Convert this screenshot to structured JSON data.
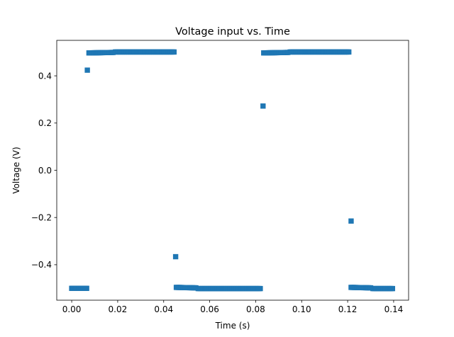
{
  "chart_data": {
    "type": "scatter",
    "title": "Voltage input vs. Time",
    "xlabel": "Time (s)",
    "ylabel": "Voltage (V)",
    "xlim": [
      -0.0065,
      0.1465
    ],
    "ylim": [
      -0.5502,
      0.5502
    ],
    "xticks": [
      0.0,
      0.02,
      0.04,
      0.06,
      0.08,
      0.1,
      0.12,
      0.14
    ],
    "xtick_labels": [
      "0.00",
      "0.02",
      "0.04",
      "0.06",
      "0.08",
      "0.10",
      "0.12",
      "0.14"
    ],
    "yticks": [
      -0.4,
      -0.2,
      0.0,
      0.2,
      0.4
    ],
    "ytick_labels": [
      "−0.4",
      "−0.2",
      "0.0",
      "0.2",
      "0.4"
    ],
    "marker": "square",
    "color": "#1f77b4",
    "grid": false,
    "segments": [
      {
        "x_start": 0.0,
        "x_end": 0.0065,
        "y_start": -0.5,
        "y_end": -0.5
      },
      {
        "x_start": 0.0075,
        "x_end": 0.018,
        "y_start": 0.497,
        "y_end": 0.499
      },
      {
        "x_start": 0.019,
        "x_end": 0.0445,
        "y_start": 0.501,
        "y_end": 0.501
      },
      {
        "x_start": 0.0455,
        "x_end": 0.054,
        "y_start": -0.496,
        "y_end": -0.498
      },
      {
        "x_start": 0.055,
        "x_end": 0.082,
        "y_start": -0.501,
        "y_end": -0.501
      },
      {
        "x_start": 0.0835,
        "x_end": 0.094,
        "y_start": 0.497,
        "y_end": 0.499
      },
      {
        "x_start": 0.095,
        "x_end": 0.1205,
        "y_start": 0.501,
        "y_end": 0.501
      },
      {
        "x_start": 0.1215,
        "x_end": 0.13,
        "y_start": -0.496,
        "y_end": -0.498
      },
      {
        "x_start": 0.131,
        "x_end": 0.1395,
        "y_start": -0.501,
        "y_end": -0.501
      }
    ],
    "points": [
      {
        "x": 0.0068,
        "y": 0.424
      },
      {
        "x": 0.0452,
        "y": -0.366
      },
      {
        "x": 0.0832,
        "y": 0.272
      },
      {
        "x": 0.1215,
        "y": -0.215
      }
    ]
  }
}
